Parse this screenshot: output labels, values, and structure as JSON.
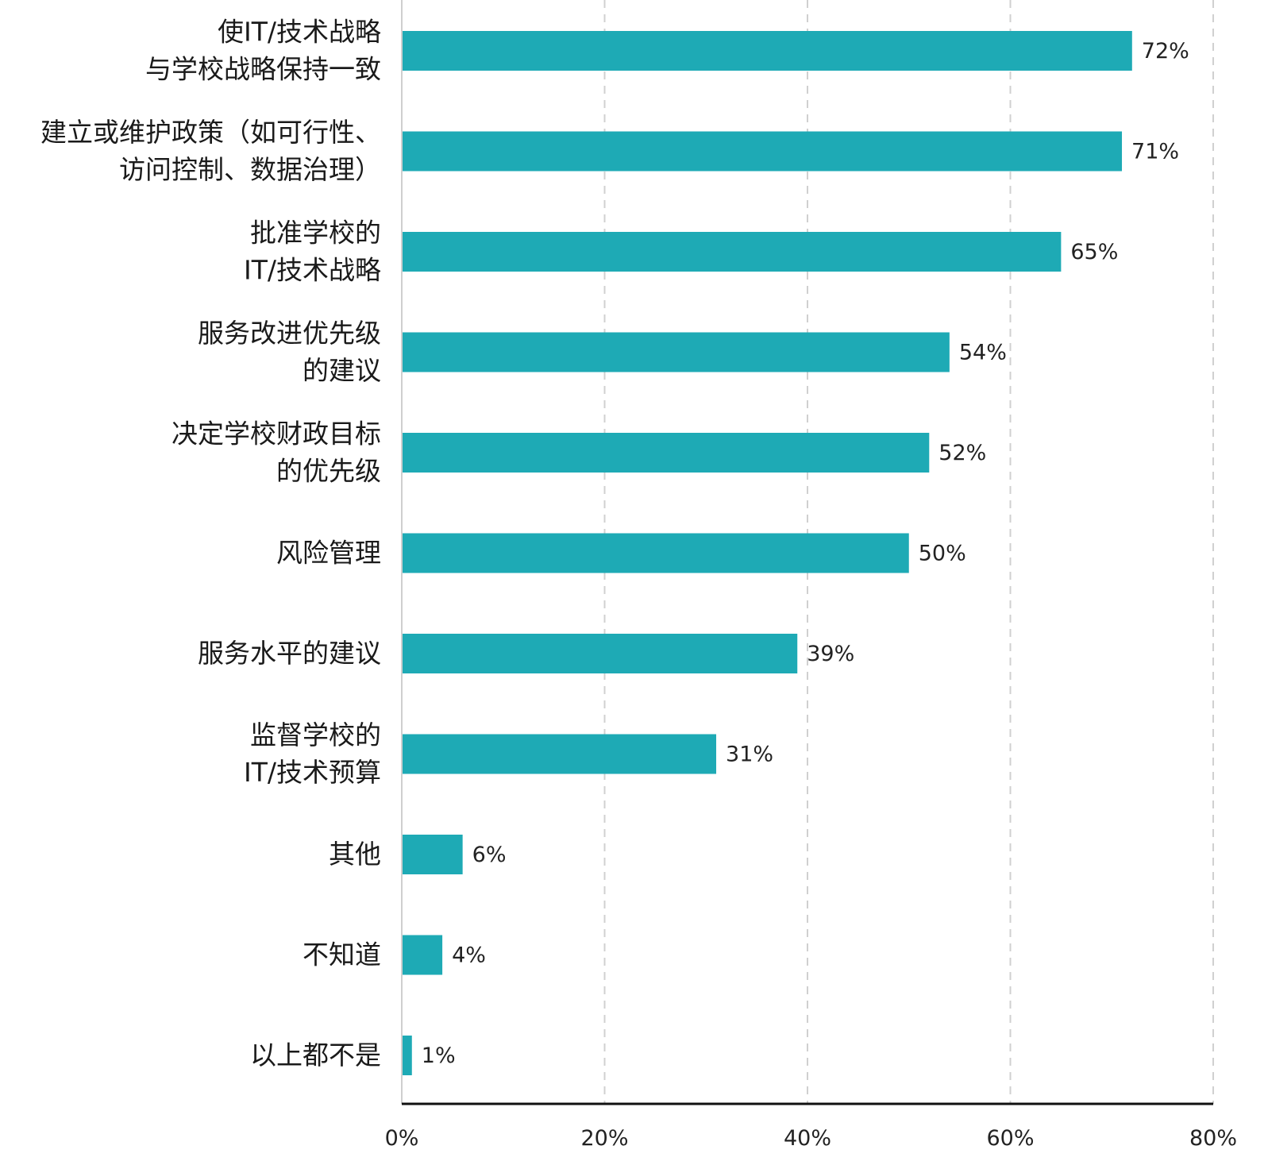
{
  "chart_data": {
    "type": "bar",
    "orientation": "horizontal",
    "categories": [
      [
        "使IT/技术战略",
        "与学校战略保持一致"
      ],
      [
        "建立或维护政策（如可行性、",
        "访问控制、数据治理）"
      ],
      [
        "批准学校的",
        "IT/技术战略"
      ],
      [
        "服务改进优先级",
        "的建议"
      ],
      [
        "决定学校财政目标",
        "的优先级"
      ],
      [
        "风险管理"
      ],
      [
        "服务水平的建议"
      ],
      [
        "监督学校的",
        "IT/技术预算"
      ],
      [
        "其他"
      ],
      [
        "不知道"
      ],
      [
        "以上都不是"
      ]
    ],
    "values": [
      72,
      71,
      65,
      54,
      52,
      50,
      39,
      31,
      6,
      4,
      1
    ],
    "value_labels": [
      "72%",
      "71%",
      "65%",
      "54%",
      "52%",
      "50%",
      "39%",
      "31%",
      "6%",
      "4%",
      "1%"
    ],
    "xlim": [
      0,
      80
    ],
    "xticks": [
      0,
      20,
      40,
      60,
      80
    ],
    "xtick_labels": [
      "0%",
      "20%",
      "40%",
      "60%",
      "80%"
    ],
    "grid": "vertical dashed",
    "bar_color": "#1eaab5",
    "grid_color": "#d0d0d0",
    "axis_color": "#111111"
  }
}
